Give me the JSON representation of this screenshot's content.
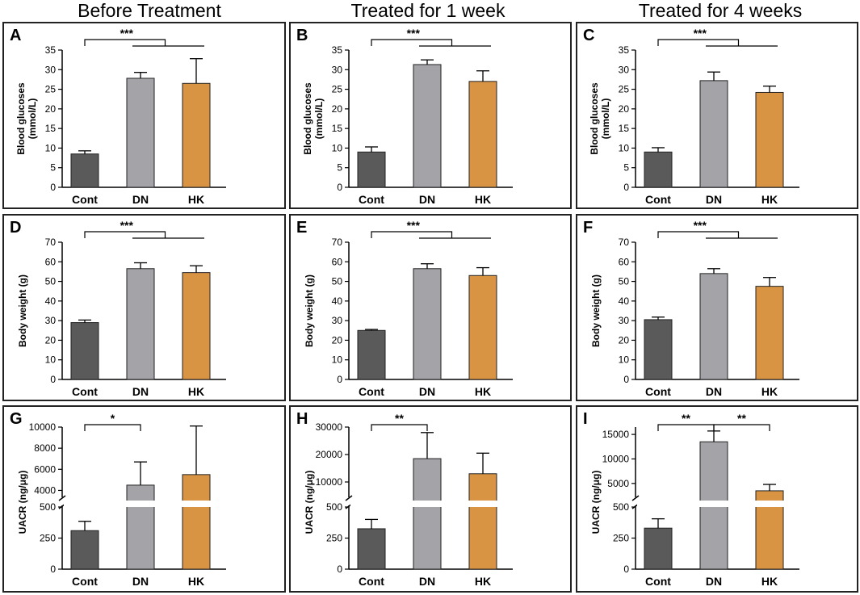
{
  "column_titles": [
    "Before Treatment",
    "Treated for 1 week",
    "Treated for 4 weeks"
  ],
  "colors": {
    "Cont": "#5a5a5a",
    "DN": "#a3a3a8",
    "HK": "#d99443",
    "stroke": "#000000"
  },
  "chart_data": [
    {
      "panel": "A",
      "type": "bar",
      "title": "Before Treatment",
      "ylabel": [
        "Blood glucoses",
        "(mmol/L)"
      ],
      "xlabel": "",
      "categories": [
        "Cont",
        "DN",
        "HK"
      ],
      "values": [
        8.5,
        27.8,
        26.5
      ],
      "errors": [
        0.8,
        1.5,
        6.3
      ],
      "ylim": [
        0,
        35
      ],
      "yticks": [
        0,
        5,
        10,
        15,
        20,
        25,
        30,
        35
      ],
      "annotations": [
        {
          "label": "***",
          "type": "one-vs-two",
          "from": 0,
          "to": [
            1,
            2
          ]
        }
      ]
    },
    {
      "panel": "B",
      "type": "bar",
      "title": "Treated for 1 week",
      "ylabel": [
        "Blood glucoses",
        "(mmol/L)"
      ],
      "xlabel": "",
      "categories": [
        "Cont",
        "DN",
        "HK"
      ],
      "values": [
        9.0,
        31.3,
        27.0
      ],
      "errors": [
        1.3,
        1.2,
        2.7
      ],
      "ylim": [
        0,
        35
      ],
      "yticks": [
        0,
        5,
        10,
        15,
        20,
        25,
        30,
        35
      ],
      "annotations": [
        {
          "label": "***",
          "type": "one-vs-two",
          "from": 0,
          "to": [
            1,
            2
          ]
        }
      ]
    },
    {
      "panel": "C",
      "type": "bar",
      "title": "Treated for 4 weeks",
      "ylabel": [
        "Blood glucoses",
        "(mmol/L)"
      ],
      "xlabel": "",
      "categories": [
        "Cont",
        "DN",
        "HK"
      ],
      "values": [
        9.0,
        27.2,
        24.2
      ],
      "errors": [
        1.1,
        2.2,
        1.6
      ],
      "ylim": [
        0,
        35
      ],
      "yticks": [
        0,
        5,
        10,
        15,
        20,
        25,
        30,
        35
      ],
      "annotations": [
        {
          "label": "***",
          "type": "one-vs-two",
          "from": 0,
          "to": [
            1,
            2
          ]
        }
      ]
    },
    {
      "panel": "D",
      "type": "bar",
      "title": "Before Treatment",
      "ylabel": [
        "Body weight (g)"
      ],
      "xlabel": "",
      "categories": [
        "Cont",
        "DN",
        "HK"
      ],
      "values": [
        29.0,
        56.5,
        54.5
      ],
      "errors": [
        1.3,
        3.0,
        3.5
      ],
      "ylim": [
        0,
        70
      ],
      "yticks": [
        0,
        10,
        20,
        30,
        40,
        50,
        60,
        70
      ],
      "annotations": [
        {
          "label": "***",
          "type": "one-vs-two",
          "from": 0,
          "to": [
            1,
            2
          ]
        }
      ]
    },
    {
      "panel": "E",
      "type": "bar",
      "title": "Treated for 1 week",
      "ylabel": [
        "Body weight (g)"
      ],
      "xlabel": "",
      "categories": [
        "Cont",
        "DN",
        "HK"
      ],
      "values": [
        25.0,
        56.5,
        53.0
      ],
      "errors": [
        0.5,
        2.5,
        4.0
      ],
      "ylim": [
        0,
        70
      ],
      "yticks": [
        0,
        10,
        20,
        30,
        40,
        50,
        60,
        70
      ],
      "annotations": [
        {
          "label": "***",
          "type": "one-vs-two",
          "from": 0,
          "to": [
            1,
            2
          ]
        }
      ]
    },
    {
      "panel": "F",
      "type": "bar",
      "title": "Treated for 4 weeks",
      "ylabel": [
        "Body weight (g)"
      ],
      "xlabel": "",
      "categories": [
        "Cont",
        "DN",
        "HK"
      ],
      "values": [
        30.5,
        54.0,
        47.5
      ],
      "errors": [
        1.3,
        2.5,
        4.5
      ],
      "ylim": [
        0,
        70
      ],
      "yticks": [
        0,
        10,
        20,
        30,
        40,
        50,
        60,
        70
      ],
      "annotations": [
        {
          "label": "***",
          "type": "one-vs-two",
          "from": 0,
          "to": [
            1,
            2
          ]
        }
      ]
    },
    {
      "panel": "G",
      "type": "bar",
      "title": "Before Treatment",
      "ylabel": [
        "UACR (ng/μg)"
      ],
      "xlabel": "",
      "categories": [
        "Cont",
        "DN",
        "HK"
      ],
      "values": [
        310,
        4500,
        5500
      ],
      "errors": [
        75,
        2200,
        4600
      ],
      "broken_axis": {
        "lower": [
          0,
          500
        ],
        "upper": [
          3500,
          10000
        ],
        "lower_ticks": [
          0,
          250,
          500
        ],
        "upper_ticks": [
          4000,
          6000,
          8000,
          10000
        ]
      },
      "annotations": [
        {
          "label": "*",
          "type": "pair",
          "from": 0,
          "to": 1
        }
      ]
    },
    {
      "panel": "H",
      "type": "bar",
      "title": "Treated for 1 week",
      "ylabel": [
        "UACR (ng/μg)"
      ],
      "xlabel": "",
      "categories": [
        "Cont",
        "DN",
        "HK"
      ],
      "values": [
        325,
        18500,
        13000
      ],
      "errors": [
        75,
        9500,
        7500
      ],
      "broken_axis": {
        "lower": [
          0,
          500
        ],
        "upper": [
          5000,
          30000
        ],
        "lower_ticks": [
          0,
          250,
          500
        ],
        "upper_ticks": [
          10000,
          20000,
          30000
        ]
      },
      "annotations": [
        {
          "label": "**",
          "type": "pair",
          "from": 0,
          "to": 1
        }
      ]
    },
    {
      "panel": "I",
      "type": "bar",
      "title": "Treated for 4 weeks",
      "ylabel": [
        "UACR (ng/μg)"
      ],
      "xlabel": "",
      "categories": [
        "Cont",
        "DN",
        "HK"
      ],
      "values": [
        330,
        13500,
        3500
      ],
      "errors": [
        75,
        2200,
        1300
      ],
      "broken_axis": {
        "lower": [
          0,
          500
        ],
        "upper": [
          2500,
          16500
        ],
        "lower_ticks": [
          0,
          250,
          500
        ],
        "upper_ticks": [
          5000,
          10000,
          15000
        ]
      },
      "annotations": [
        {
          "label": "**",
          "type": "pair",
          "from": 0,
          "to": 1
        },
        {
          "label": "**",
          "type": "pair",
          "from": 1,
          "to": 2
        }
      ]
    }
  ]
}
